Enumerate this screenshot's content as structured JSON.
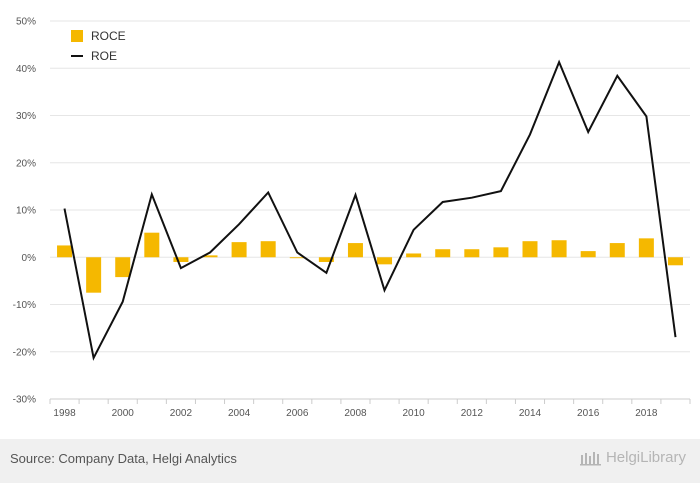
{
  "chart_data": {
    "type": "bar+line",
    "x": [
      1998,
      1999,
      2000,
      2001,
      2002,
      2003,
      2004,
      2005,
      2006,
      2007,
      2008,
      2009,
      2010,
      2011,
      2012,
      2013,
      2014,
      2015,
      2016,
      2017,
      2018,
      2019
    ],
    "x_tick_labels": [
      "1998",
      "2000",
      "2002",
      "2004",
      "2006",
      "2008",
      "2010",
      "2012",
      "2014",
      "2016",
      "2018"
    ],
    "series": [
      {
        "name": "ROCE",
        "kind": "bar",
        "color": "#f5b800",
        "values": [
          2.5,
          -7.5,
          -4.2,
          5.2,
          -1.0,
          0.4,
          3.2,
          3.4,
          -0.2,
          -1.0,
          3.0,
          -1.5,
          0.8,
          1.7,
          1.7,
          2.1,
          3.4,
          3.6,
          1.3,
          3.0,
          4.0,
          -1.7
        ]
      },
      {
        "name": "ROE",
        "kind": "line",
        "color": "#111111",
        "values": [
          10.3,
          -21.3,
          -9.4,
          13.3,
          -2.3,
          1.0,
          7.0,
          13.7,
          1.0,
          -3.3,
          13.2,
          -7.0,
          5.8,
          11.7,
          12.6,
          14.0,
          26.0,
          41.3,
          26.5,
          38.4,
          29.8,
          -16.9
        ]
      }
    ],
    "y_ticks": [
      "-30%",
      "-20%",
      "-10%",
      "0%",
      "10%",
      "20%",
      "30%",
      "40%",
      "50%"
    ],
    "ylim": [
      -30,
      50
    ],
    "unit": "%",
    "grid": "horizontal",
    "legend_position": "top-left"
  },
  "footer": {
    "source": "Source: Company Data, Helgi Analytics",
    "brand": "HelgiLibrary"
  }
}
